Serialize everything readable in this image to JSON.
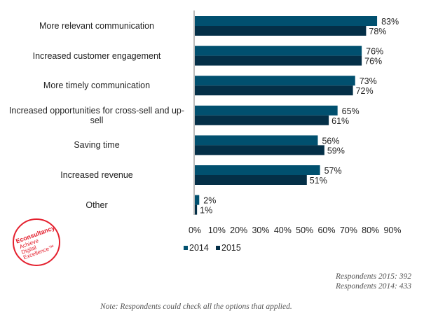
{
  "chart_data": {
    "type": "bar",
    "orientation": "horizontal",
    "categories": [
      "More relevant communication",
      "Increased customer engagement",
      "More timely communication",
      "Increased opportunities for cross-sell and up-sell",
      "Saving time",
      "Increased revenue",
      "Other"
    ],
    "series": [
      {
        "name": "2014",
        "values": [
          83,
          76,
          73,
          65,
          56,
          57,
          2
        ],
        "color": "#01506f"
      },
      {
        "name": "2015",
        "values": [
          78,
          76,
          72,
          61,
          59,
          51,
          1
        ],
        "color": "#042f47"
      }
    ],
    "data_labels": {
      "2014": [
        "83%",
        "76%",
        "73%",
        "65%",
        "56%",
        "57%",
        "2%"
      ],
      "2015": [
        "78%",
        "76%",
        "72%",
        "61%",
        "59%",
        "51%",
        "1%"
      ]
    },
    "xlim": [
      0,
      90
    ],
    "xticks": [
      "0%",
      "10%",
      "20%",
      "30%",
      "40%",
      "50%",
      "60%",
      "70%",
      "80%",
      "90%"
    ],
    "grid": false,
    "legend_position": "bottom"
  },
  "notes": {
    "respondents_2015": "Respondents 2015: 392",
    "respondents_2014": "Respondents 2014: 433",
    "footnote": "Note: Respondents could check all the options that applied."
  },
  "logo": {
    "text": [
      "Econsultancy",
      "Achieve",
      "Digital",
      "Excellence™"
    ],
    "color": "#e4202e"
  }
}
